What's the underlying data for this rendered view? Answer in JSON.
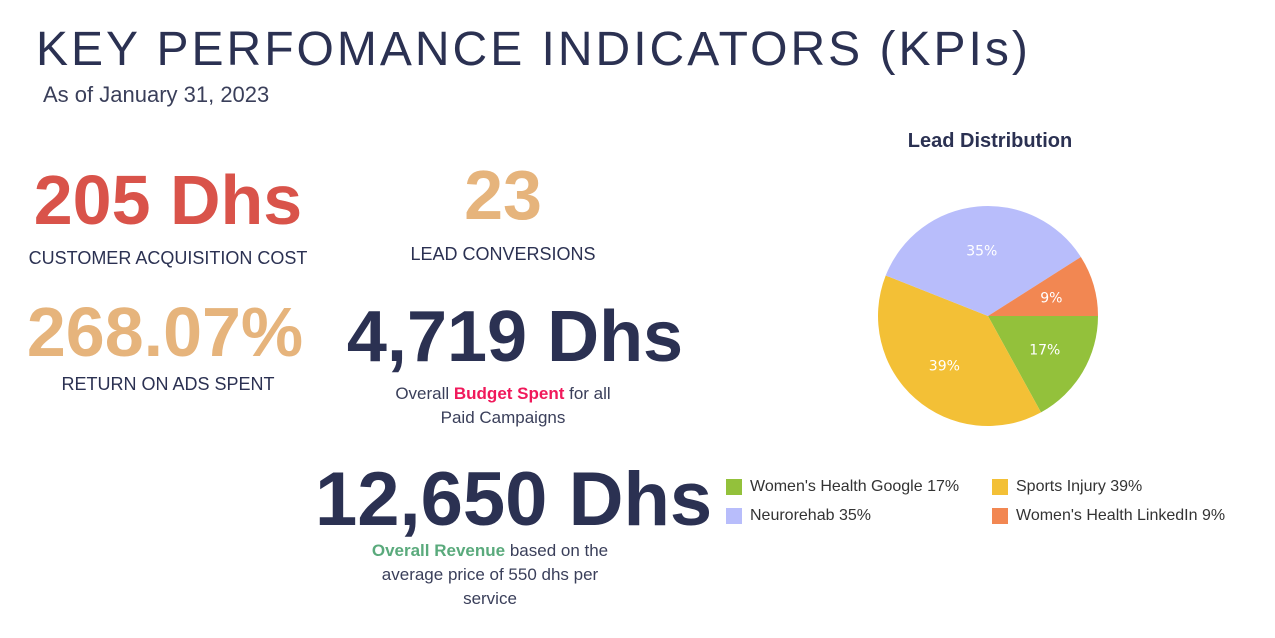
{
  "header": {
    "title": "KEY PERFOMANCE INDICATORS (KPIs)",
    "subtitle": "As of January 31, 2023"
  },
  "kpis": {
    "cac": {
      "value": "205 Dhs",
      "label": "CUSTOMER ACQUISITION COST",
      "color": "#d9534a"
    },
    "conversions": {
      "value": "23",
      "label": "LEAD CONVERSIONS",
      "color": "#e6b47c"
    },
    "roas": {
      "value": "268.07%",
      "label": "RETURN ON ADS SPENT",
      "color": "#e6b47c"
    },
    "budget": {
      "value": "4,719 Dhs",
      "pre": "Overall ",
      "highlight": "Budget Spent",
      "post": " for all",
      "line2": "Paid Campaigns"
    },
    "revenue": {
      "value": "12,650 Dhs",
      "highlight": "Overall Revenue",
      "post": " based on the",
      "line2": "average price of 550 dhs per",
      "line3": "service"
    }
  },
  "chart_data": {
    "type": "pie",
    "title": "Lead Distribution",
    "slices": [
      {
        "name": "Women's Health Google",
        "value": 17,
        "label": "17%",
        "legend": "Women's Health Google 17%",
        "color": "#93c13b"
      },
      {
        "name": "Sports Injury",
        "value": 39,
        "label": "39%",
        "legend": "Sports Injury 39%",
        "color": "#f3c036"
      },
      {
        "name": "Neurorehab",
        "value": 35,
        "label": "35%",
        "legend": "Neurorehab 35%",
        "color": "#b8bdfb"
      },
      {
        "name": "Women's Health LinkedIn",
        "value": 9,
        "label": "9%",
        "legend": "Women's Health LinkedIn 9%",
        "color": "#f28752"
      }
    ],
    "legend_position": "bottom"
  }
}
